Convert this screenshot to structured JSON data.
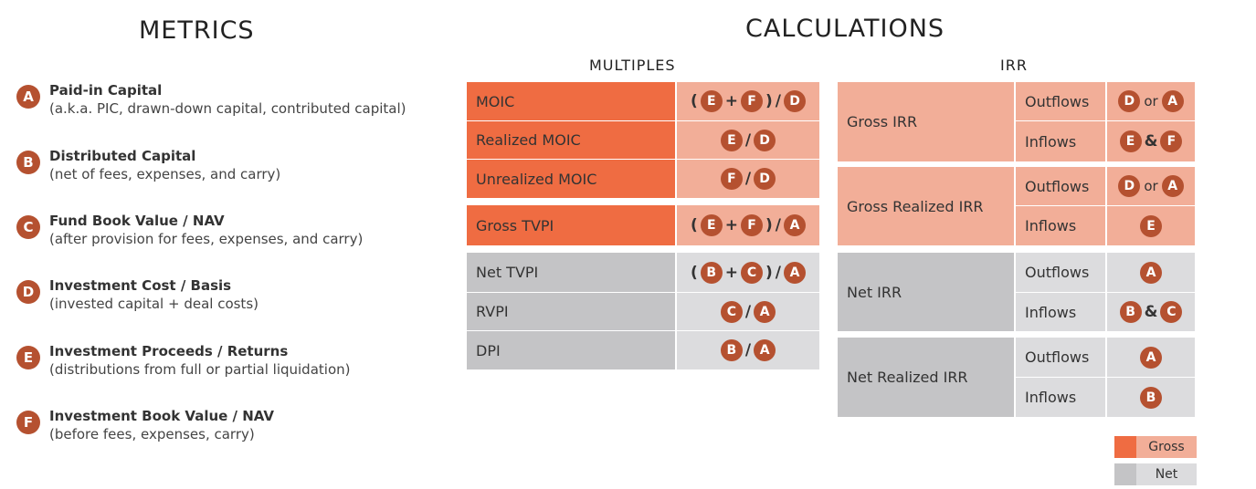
{
  "metrics_title": "METRICS",
  "calc_title": "CALCULATIONS",
  "multiples_title": "MULTIPLES",
  "irr_title": "IRR",
  "colors": {
    "badge": "#b55130",
    "gross_dark": "#ef6c42",
    "gross_light": "#f2ae98",
    "net_dark": "#c4c4c6",
    "net_light": "#dcdcde"
  },
  "metrics": [
    {
      "letter": "A",
      "title": "Paid-in Capital",
      "desc": "(a.k.a. PIC, drawn-down capital, contributed capital)"
    },
    {
      "letter": "B",
      "title": "Distributed Capital",
      "desc": "(net of fees, expenses, and carry)"
    },
    {
      "letter": "C",
      "title": "Fund Book Value / NAV",
      "desc": "(after provision for fees, expenses, and carry)"
    },
    {
      "letter": "D",
      "title": "Investment Cost / Basis",
      "desc": "(invested capital + deal costs)"
    },
    {
      "letter": "E",
      "title": "Investment Proceeds / Returns",
      "desc": "(distributions from full or partial liquidation)"
    },
    {
      "letter": "F",
      "title": "Investment Book Value / NAV",
      "desc": "(before fees, expenses, carry)"
    }
  ],
  "multiples": [
    {
      "label": "MOIC",
      "formula": [
        "(",
        "E",
        "+",
        "F",
        ")",
        "/",
        "D"
      ]
    },
    {
      "label": "Realized MOIC",
      "formula": [
        "E",
        "/",
        "D"
      ]
    },
    {
      "label": "Unrealized MOIC",
      "formula": [
        "F",
        "/",
        "D"
      ]
    },
    {
      "label": "Gross TVPI",
      "formula": [
        "(",
        "E",
        "+",
        "F",
        ")",
        "/",
        "A"
      ]
    },
    {
      "label": "Net TVPI",
      "formula": [
        "(",
        "B",
        "+",
        "C",
        ")",
        "/",
        "A"
      ]
    },
    {
      "label": "RVPI",
      "formula": [
        "C",
        "/",
        "A"
      ]
    },
    {
      "label": "DPI",
      "formula": [
        "B",
        "/",
        "A"
      ]
    }
  ],
  "irr": [
    {
      "label": "Gross IRR",
      "rows": [
        {
          "type": "Outflows",
          "formula": [
            "D",
            "or",
            "A"
          ]
        },
        {
          "type": "Inflows",
          "formula": [
            "E",
            "&",
            "F"
          ]
        }
      ]
    },
    {
      "label": "Gross Realized IRR",
      "rows": [
        {
          "type": "Outflows",
          "formula": [
            "D",
            "or",
            "A"
          ]
        },
        {
          "type": "Inflows",
          "formula": [
            "E"
          ]
        }
      ]
    },
    {
      "label": "Net IRR",
      "rows": [
        {
          "type": "Outflows",
          "formula": [
            "A"
          ]
        },
        {
          "type": "Inflows",
          "formula": [
            "B",
            "&",
            "C"
          ]
        }
      ]
    },
    {
      "label": "Net Realized IRR",
      "rows": [
        {
          "type": "Outflows",
          "formula": [
            "A"
          ]
        },
        {
          "type": "Inflows",
          "formula": [
            "B"
          ]
        }
      ]
    }
  ],
  "legend": {
    "gross": "Gross",
    "net": "Net"
  }
}
